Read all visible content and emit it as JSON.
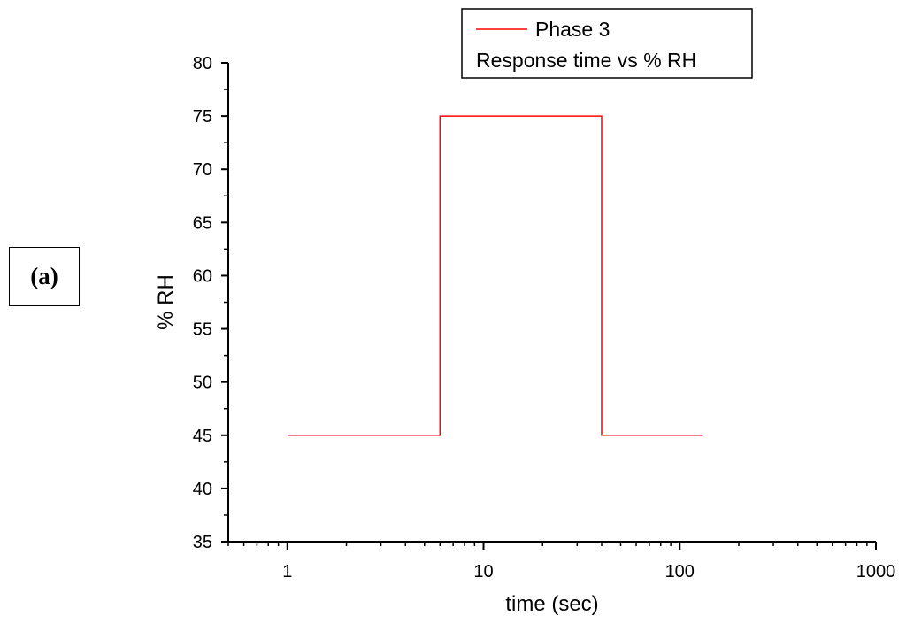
{
  "panel_label": "(a)",
  "chart_data": {
    "type": "line",
    "xlabel": "time (sec)",
    "ylabel": "% RH",
    "xscale": "log",
    "xlim": [
      0.5,
      1000
    ],
    "ylim": [
      35,
      80
    ],
    "x_ticks": [
      1,
      10,
      100,
      1000
    ],
    "x_tick_labels": [
      "1",
      "10",
      "100",
      "1000"
    ],
    "y_ticks": [
      35,
      40,
      45,
      50,
      55,
      60,
      65,
      70,
      75,
      80
    ],
    "y_tick_labels": [
      "35",
      "40",
      "45",
      "50",
      "55",
      "60",
      "65",
      "70",
      "75",
      "80"
    ],
    "grid": false,
    "legend": {
      "position": "top-right",
      "entries": [
        "Phase 3",
        "Response time vs % RH"
      ]
    },
    "series": [
      {
        "name": "Phase 3",
        "color": "#ff0000",
        "x": [
          1,
          6,
          6,
          40,
          40,
          130
        ],
        "y": [
          45,
          45,
          75,
          75,
          45,
          45
        ]
      }
    ]
  }
}
